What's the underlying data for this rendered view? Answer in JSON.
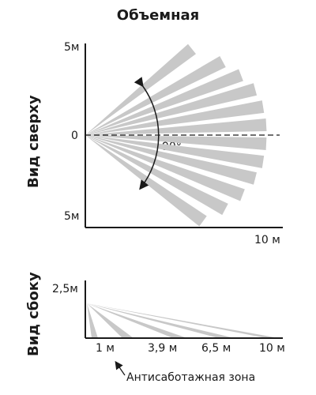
{
  "title": "Объемная",
  "top_view": {
    "label": "Вид сверху",
    "tick_top": "5м",
    "tick_zero": "0",
    "tick_bottom": "5м",
    "tick_x": "10 м",
    "angle_label": "90°",
    "beam_color": "#c8c8c8"
  },
  "side_view": {
    "label": "Вид сбоку",
    "tick_height": "2,5м",
    "ticks_x": [
      "1 м",
      "3,9 м",
      "6,5 м",
      "10 м"
    ],
    "anti_sabotage_label": "Антисаботажная зона"
  }
}
